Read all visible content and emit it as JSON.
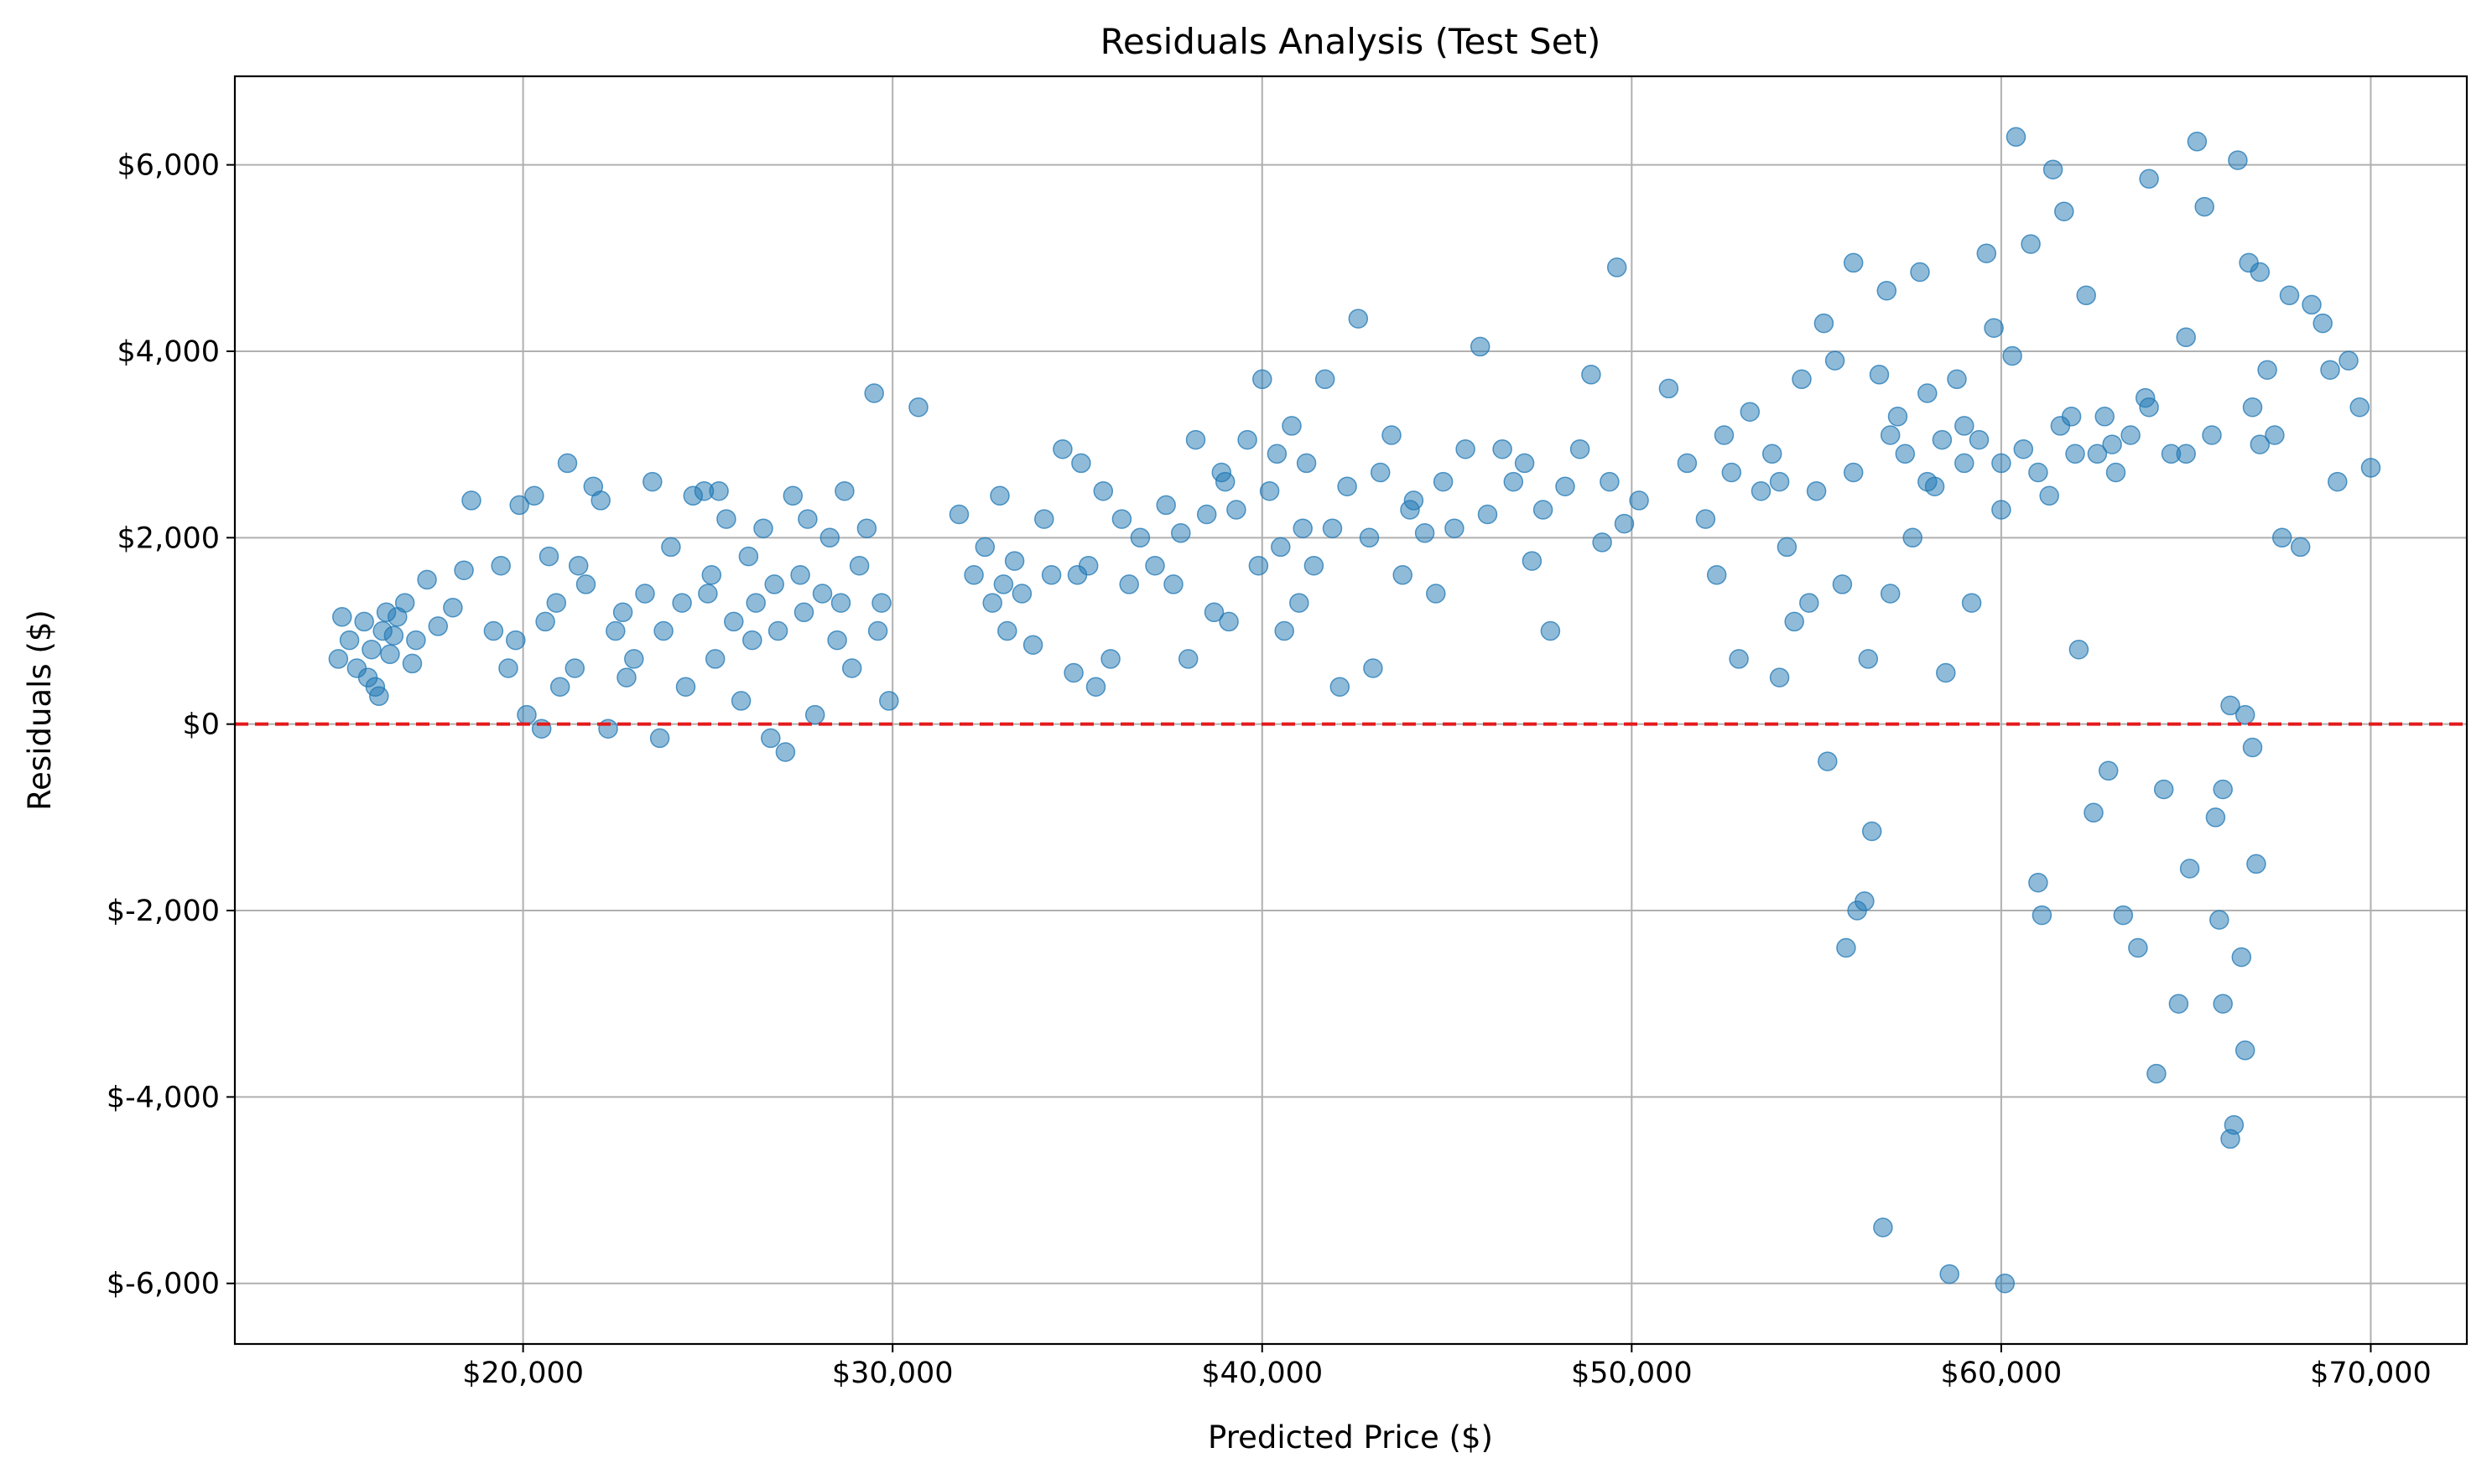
{
  "chart_data": {
    "type": "scatter",
    "title": "Residuals Analysis (Test Set)",
    "xlabel": "Predicted Price ($)",
    "ylabel": "Residuals ($)",
    "xlim": [
      12200,
      72600
    ],
    "ylim": [
      -6650,
      6950
    ],
    "x_ticks": [
      {
        "value": 20000,
        "label": "$20,000"
      },
      {
        "value": 30000,
        "label": "$30,000"
      },
      {
        "value": 40000,
        "label": "$40,000"
      },
      {
        "value": 50000,
        "label": "$50,000"
      },
      {
        "value": 60000,
        "label": "$60,000"
      },
      {
        "value": 70000,
        "label": "$70,000"
      }
    ],
    "y_ticks": [
      {
        "value": 6000,
        "label": "$6,000"
      },
      {
        "value": 4000,
        "label": "$4,000"
      },
      {
        "value": 2000,
        "label": "$2,000"
      },
      {
        "value": 0,
        "label": "$0"
      },
      {
        "value": -2000,
        "label": "$-2,000"
      },
      {
        "value": -4000,
        "label": "$-4,000"
      },
      {
        "value": -6000,
        "label": "$-6,000"
      }
    ],
    "grid": true,
    "reference_line": {
      "y": 0,
      "color": "#e41a1c",
      "style": "dashed"
    },
    "point_color": "#1f77b4",
    "point_opacity": 0.5,
    "points": [
      [
        15000,
        700
      ],
      [
        15100,
        1150
      ],
      [
        15300,
        900
      ],
      [
        15500,
        600
      ],
      [
        15700,
        1100
      ],
      [
        15900,
        800
      ],
      [
        16000,
        400
      ],
      [
        16200,
        1000
      ],
      [
        16400,
        750
      ],
      [
        16600,
        1150
      ],
      [
        16800,
        1300
      ],
      [
        17100,
        900
      ],
      [
        17400,
        1550
      ],
      [
        17700,
        1050
      ],
      [
        18100,
        1250
      ],
      [
        18400,
        1650
      ],
      [
        18600,
        2400
      ],
      [
        16100,
        300
      ],
      [
        15800,
        500
      ],
      [
        16500,
        950
      ],
      [
        17000,
        650
      ],
      [
        16300,
        1200
      ],
      [
        19200,
        1000
      ],
      [
        19400,
        1700
      ],
      [
        19600,
        600
      ],
      [
        19900,
        2350
      ],
      [
        20100,
        100
      ],
      [
        20300,
        2450
      ],
      [
        20500,
        -50
      ],
      [
        20700,
        1800
      ],
      [
        20900,
        1300
      ],
      [
        21200,
        2800
      ],
      [
        21400,
        600
      ],
      [
        21700,
        1500
      ],
      [
        21900,
        2550
      ],
      [
        22100,
        2400
      ],
      [
        22300,
        -50
      ],
      [
        22500,
        1000
      ],
      [
        22700,
        1200
      ],
      [
        23000,
        700
      ],
      [
        23300,
        1400
      ],
      [
        23500,
        2600
      ],
      [
        23700,
        -150
      ],
      [
        24000,
        1900
      ],
      [
        24300,
        1300
      ],
      [
        24600,
        2450
      ],
      [
        24900,
        2500
      ],
      [
        25100,
        1600
      ],
      [
        25300,
        2500
      ],
      [
        19800,
        900
      ],
      [
        20600,
        1100
      ],
      [
        21000,
        400
      ],
      [
        21500,
        1700
      ],
      [
        22800,
        500
      ],
      [
        23800,
        1000
      ],
      [
        24400,
        400
      ],
      [
        25000,
        1400
      ],
      [
        25200,
        700
      ],
      [
        25500,
        2200
      ],
      [
        25700,
        1100
      ],
      [
        25900,
        250
      ],
      [
        26100,
        1800
      ],
      [
        26300,
        1300
      ],
      [
        26500,
        2100
      ],
      [
        26700,
        -150
      ],
      [
        26900,
        1000
      ],
      [
        27100,
        -300
      ],
      [
        27300,
        2450
      ],
      [
        27500,
        1600
      ],
      [
        27700,
        2200
      ],
      [
        27900,
        100
      ],
      [
        28100,
        1400
      ],
      [
        28300,
        2000
      ],
      [
        28500,
        900
      ],
      [
        28700,
        2500
      ],
      [
        28900,
        600
      ],
      [
        29100,
        1700
      ],
      [
        29300,
        2100
      ],
      [
        29500,
        3550
      ],
      [
        29700,
        1300
      ],
      [
        29900,
        250
      ],
      [
        30700,
        3400
      ],
      [
        26200,
        900
      ],
      [
        26800,
        1500
      ],
      [
        27600,
        1200
      ],
      [
        28600,
        1300
      ],
      [
        29600,
        1000
      ],
      [
        31800,
        2250
      ],
      [
        32200,
        1600
      ],
      [
        32500,
        1900
      ],
      [
        32700,
        1300
      ],
      [
        32900,
        2450
      ],
      [
        33100,
        1000
      ],
      [
        33300,
        1750
      ],
      [
        33500,
        1400
      ],
      [
        33800,
        850
      ],
      [
        34100,
        2200
      ],
      [
        34300,
        1600
      ],
      [
        34600,
        2950
      ],
      [
        34900,
        550
      ],
      [
        35100,
        2800
      ],
      [
        35300,
        1700
      ],
      [
        35500,
        400
      ],
      [
        35700,
        2500
      ],
      [
        35900,
        700
      ],
      [
        36200,
        2200
      ],
      [
        36400,
        1500
      ],
      [
        36700,
        2000
      ],
      [
        37100,
        1700
      ],
      [
        37400,
        2350
      ],
      [
        37600,
        1500
      ],
      [
        37800,
        2050
      ],
      [
        38000,
        700
      ],
      [
        38200,
        3050
      ],
      [
        38500,
        2250
      ],
      [
        38700,
        1200
      ],
      [
        38900,
        2700
      ],
      [
        39100,
        1100
      ],
      [
        39300,
        2300
      ],
      [
        39600,
        3050
      ],
      [
        39900,
        1700
      ],
      [
        40000,
        3700
      ],
      [
        40200,
        2500
      ],
      [
        40400,
        2900
      ],
      [
        40600,
        1000
      ],
      [
        40800,
        3200
      ],
      [
        41000,
        1300
      ],
      [
        41200,
        2800
      ],
      [
        41400,
        1700
      ],
      [
        41700,
        3700
      ],
      [
        41900,
        2100
      ],
      [
        42100,
        400
      ],
      [
        42300,
        2550
      ],
      [
        42600,
        4350
      ],
      [
        42900,
        2000
      ],
      [
        43200,
        2700
      ],
      [
        43500,
        3100
      ],
      [
        43800,
        1600
      ],
      [
        44100,
        2400
      ],
      [
        44400,
        2050
      ],
      [
        44700,
        1400
      ],
      [
        44900,
        2600
      ],
      [
        45200,
        2100
      ],
      [
        45500,
        2950
      ],
      [
        45900,
        4050
      ],
      [
        46100,
        2250
      ],
      [
        46500,
        2950
      ],
      [
        46800,
        2600
      ],
      [
        47100,
        2800
      ],
      [
        47300,
        1750
      ],
      [
        47600,
        2300
      ],
      [
        47800,
        1000
      ],
      [
        48200,
        2550
      ],
      [
        48600,
        2950
      ],
      [
        48900,
        3750
      ],
      [
        49200,
        1950
      ],
      [
        49400,
        2600
      ],
      [
        49600,
        4900
      ],
      [
        49800,
        2150
      ],
      [
        50200,
        2400
      ],
      [
        35000,
        1600
      ],
      [
        40500,
        1900
      ],
      [
        41100,
        2100
      ],
      [
        33000,
        1500
      ],
      [
        39000,
        2600
      ],
      [
        44000,
        2300
      ],
      [
        43000,
        600
      ],
      [
        51000,
        3600
      ],
      [
        51500,
        2800
      ],
      [
        52000,
        2200
      ],
      [
        52300,
        1600
      ],
      [
        52500,
        3100
      ],
      [
        52700,
        2700
      ],
      [
        52900,
        700
      ],
      [
        53200,
        3350
      ],
      [
        53500,
        2500
      ],
      [
        53800,
        2900
      ],
      [
        54000,
        500
      ],
      [
        54200,
        1900
      ],
      [
        54400,
        1100
      ],
      [
        54600,
        3700
      ],
      [
        54800,
        1300
      ],
      [
        55000,
        2500
      ],
      [
        55200,
        4300
      ],
      [
        55300,
        -400
      ],
      [
        55500,
        3900
      ],
      [
        55700,
        1500
      ],
      [
        55800,
        -2400
      ],
      [
        56000,
        4950
      ],
      [
        56100,
        -2000
      ],
      [
        56300,
        -1900
      ],
      [
        56400,
        700
      ],
      [
        56500,
        -1150
      ],
      [
        56700,
        3750
      ],
      [
        56800,
        -5400
      ],
      [
        56900,
        4650
      ],
      [
        57000,
        1400
      ],
      [
        57200,
        3300
      ],
      [
        57400,
        2900
      ],
      [
        57600,
        2000
      ],
      [
        57800,
        4850
      ],
      [
        58000,
        3550
      ],
      [
        58200,
        2550
      ],
      [
        58400,
        3050
      ],
      [
        58500,
        550
      ],
      [
        58600,
        -5900
      ],
      [
        58800,
        3700
      ],
      [
        59000,
        2800
      ],
      [
        59200,
        1300
      ],
      [
        59400,
        3050
      ],
      [
        59600,
        5050
      ],
      [
        59800,
        4250
      ],
      [
        60000,
        2300
      ],
      [
        60100,
        -6000
      ],
      [
        60300,
        3950
      ],
      [
        60400,
        6300
      ],
      [
        60600,
        2950
      ],
      [
        60800,
        5150
      ],
      [
        61000,
        -1700
      ],
      [
        61100,
        -2050
      ],
      [
        61300,
        2450
      ],
      [
        61400,
        5950
      ],
      [
        61600,
        3200
      ],
      [
        61700,
        5500
      ],
      [
        61900,
        3300
      ],
      [
        62100,
        800
      ],
      [
        62300,
        4600
      ],
      [
        62500,
        -950
      ],
      [
        62600,
        2900
      ],
      [
        62800,
        3300
      ],
      [
        62900,
        -500
      ],
      [
        63100,
        2700
      ],
      [
        63300,
        -2050
      ],
      [
        63500,
        3100
      ],
      [
        63700,
        -2400
      ],
      [
        63900,
        3500
      ],
      [
        64000,
        5850
      ],
      [
        64200,
        -3750
      ],
      [
        64400,
        -700
      ],
      [
        64600,
        2900
      ],
      [
        64800,
        -3000
      ],
      [
        65000,
        4150
      ],
      [
        65100,
        -1550
      ],
      [
        65300,
        6250
      ],
      [
        65500,
        5550
      ],
      [
        65700,
        3100
      ],
      [
        65900,
        -2100
      ],
      [
        66000,
        -3000
      ],
      [
        66200,
        -4450
      ],
      [
        66300,
        -4300
      ],
      [
        66400,
        6050
      ],
      [
        66500,
        -2500
      ],
      [
        66600,
        -3500
      ],
      [
        66700,
        4950
      ],
      [
        66800,
        3400
      ],
      [
        66900,
        -1500
      ],
      [
        67000,
        4850
      ],
      [
        67200,
        3800
      ],
      [
        67400,
        3100
      ],
      [
        67600,
        2000
      ],
      [
        67800,
        4600
      ],
      [
        68100,
        1900
      ],
      [
        68400,
        4500
      ],
      [
        68700,
        4300
      ],
      [
        68900,
        3800
      ],
      [
        69100,
        2600
      ],
      [
        69400,
        3900
      ],
      [
        69700,
        3400
      ],
      [
        70000,
        2750
      ],
      [
        66000,
        -700
      ],
      [
        66200,
        200
      ],
      [
        66600,
        100
      ],
      [
        66800,
        -250
      ],
      [
        65800,
        -1000
      ],
      [
        57000,
        3100
      ],
      [
        59000,
        3200
      ],
      [
        61000,
        2700
      ],
      [
        63000,
        3000
      ],
      [
        65000,
        2900
      ],
      [
        67000,
        3000
      ],
      [
        64000,
        3400
      ],
      [
        62000,
        2900
      ],
      [
        60000,
        2800
      ],
      [
        58000,
        2600
      ],
      [
        56000,
        2700
      ],
      [
        54000,
        2600
      ]
    ]
  }
}
